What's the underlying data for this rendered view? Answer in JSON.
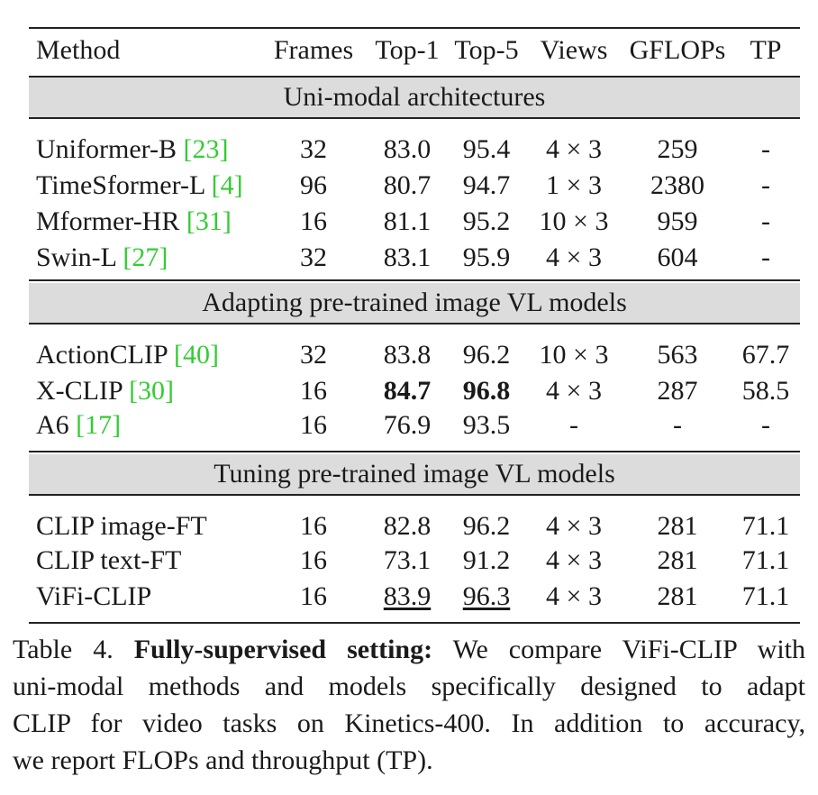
{
  "table": {
    "headers": {
      "method": "Method",
      "frames": "Frames",
      "top1": "Top-1",
      "top5": "Top-5",
      "views": "Views",
      "gflops": "GFLOPs",
      "tp": "TP"
    },
    "sections": [
      {
        "title": "Uni-modal architectures",
        "rows": [
          {
            "method": "Uniformer-B ",
            "ref": "[23]",
            "frames": "32",
            "top1": "83.0",
            "top5": "95.4",
            "views": "4 × 3",
            "gflops": "259",
            "tp": "-"
          },
          {
            "method": "TimeSformer-L ",
            "ref": "[4]",
            "frames": "96",
            "top1": "80.7",
            "top5": "94.7",
            "views": "1 × 3",
            "gflops": "2380",
            "tp": "-"
          },
          {
            "method": "Mformer-HR ",
            "ref": "[31]",
            "frames": "16",
            "top1": "81.1",
            "top5": "95.2",
            "views": "10 × 3",
            "gflops": "959",
            "tp": "-"
          },
          {
            "method": "Swin-L ",
            "ref": "[27]",
            "frames": "32",
            "top1": "83.1",
            "top5": "95.9",
            "views": "4 × 3",
            "gflops": "604",
            "tp": "-"
          }
        ]
      },
      {
        "title": "Adapting pre-trained image VL models",
        "rows": [
          {
            "method": "ActionCLIP ",
            "ref": "[40]",
            "frames": "32",
            "top1": "83.8",
            "top5": "96.2",
            "views": "10 × 3",
            "gflops": "563",
            "tp": "67.7"
          },
          {
            "method": "X-CLIP ",
            "ref": "[30]",
            "frames": "16",
            "top1": "84.7",
            "top5": "96.8",
            "views": "4 × 3",
            "gflops": "287",
            "tp": "58.5"
          },
          {
            "method": "A6 ",
            "ref": "[17]",
            "frames": "16",
            "top1": "76.9",
            "top5": "93.5",
            "views": "-",
            "gflops": "-",
            "tp": "-"
          }
        ]
      },
      {
        "title": "Tuning pre-trained image VL models",
        "rows": [
          {
            "method": "CLIP image-FT",
            "ref": "",
            "frames": "16",
            "top1": "82.8",
            "top5": "96.2",
            "views": "4 × 3",
            "gflops": "281",
            "tp": "71.1"
          },
          {
            "method": "CLIP text-FT",
            "ref": "",
            "frames": "16",
            "top1": "73.1",
            "top5": "91.2",
            "views": "4 × 3",
            "gflops": "281",
            "tp": "71.1"
          },
          {
            "method": "ViFi-CLIP",
            "ref": "",
            "frames": "16",
            "top1": "83.9",
            "top5": "96.3",
            "views": "4 × 3",
            "gflops": "281",
            "tp": "71.1"
          }
        ]
      }
    ]
  },
  "caption": {
    "label": "Table 4. ",
    "bold": "Fully-supervised setting:",
    "line1_rest": " We compare ViFi-CLIP with",
    "line2": "uni-modal methods and models specifically designed to adapt",
    "line3": "CLIP for video tasks on Kinetics-400. In addition to accuracy,",
    "line4": "we report FLOPs and throughput (TP)."
  }
}
